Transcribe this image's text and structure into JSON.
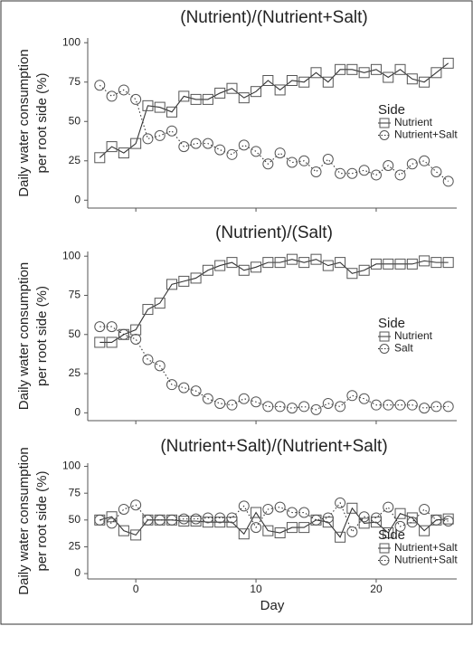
{
  "chart_data": [
    {
      "type": "line",
      "title": "(Nutrient)/(Nutrient+Salt)",
      "ylabel": [
        "Daily water consumption",
        "per root side (%)"
      ],
      "x": [
        -3,
        -2,
        -1,
        0,
        1,
        2,
        3,
        4,
        5,
        6,
        7,
        8,
        9,
        10,
        11,
        12,
        13,
        14,
        15,
        16,
        17,
        18,
        19,
        20,
        21,
        22,
        23,
        24,
        25,
        26
      ],
      "series": [
        {
          "name": "Nutrient",
          "color": "#333333",
          "marker": "square",
          "linestyle": "solid",
          "values": [
            27,
            34,
            30,
            36,
            60,
            59,
            56,
            66,
            64,
            64,
            68,
            71,
            65,
            69,
            76,
            70,
            76,
            75,
            81,
            75,
            83,
            83,
            81,
            83,
            78,
            83,
            77,
            75,
            81,
            87
          ]
        },
        {
          "name": "Nutrient+Salt",
          "color": "#333333",
          "marker": "circle",
          "linestyle": "dotted",
          "values": [
            73,
            66,
            70,
            64,
            39,
            41,
            44,
            34,
            36,
            36,
            32,
            29,
            35,
            31,
            23,
            30,
            24,
            25,
            18,
            26,
            17,
            17,
            19,
            16,
            22,
            16,
            23,
            25,
            18,
            12
          ]
        }
      ],
      "legend_title": "Side",
      "legend": "right",
      "xlim": [
        -4,
        26.7
      ],
      "xticks": [
        0,
        10,
        20
      ],
      "show_xtick_labels": false,
      "ylim": [
        -5,
        103
      ],
      "yticks": [
        0,
        25,
        50,
        75,
        100
      ],
      "grid": false
    },
    {
      "type": "line",
      "title": "(Nutrient)/(Salt)",
      "ylabel": [
        "Daily water consumption",
        "per root side (%)"
      ],
      "x": [
        -3,
        -2,
        -1,
        0,
        1,
        2,
        3,
        4,
        5,
        6,
        7,
        8,
        9,
        10,
        11,
        12,
        13,
        14,
        15,
        16,
        17,
        18,
        19,
        20,
        21,
        22,
        23,
        24,
        25,
        26
      ],
      "series": [
        {
          "name": "Nutrient",
          "color": "#333333",
          "marker": "square",
          "linestyle": "solid",
          "values": [
            45,
            45,
            50,
            53,
            66,
            70,
            82,
            84,
            86,
            91,
            94,
            96,
            91,
            93,
            96,
            96,
            98,
            96,
            98,
            94,
            96,
            89,
            91,
            95,
            95,
            95,
            95,
            97,
            96,
            96
          ]
        },
        {
          "name": "Salt",
          "color": "#333333",
          "marker": "circle",
          "linestyle": "dotted",
          "values": [
            55,
            55,
            50,
            47,
            34,
            30,
            18,
            16,
            14,
            9,
            6,
            5,
            9,
            7,
            4,
            4,
            3,
            4,
            2,
            6,
            4,
            11,
            9,
            5,
            5,
            5,
            5,
            3,
            4,
            4
          ]
        }
      ],
      "legend_title": "Side",
      "legend": "right",
      "xlim": [
        -4,
        26.7
      ],
      "xticks": [
        0,
        10,
        20
      ],
      "show_xtick_labels": false,
      "ylim": [
        -5,
        103
      ],
      "yticks": [
        0,
        25,
        50,
        75,
        100
      ],
      "grid": false
    },
    {
      "type": "line",
      "title": "(Nutrient+Salt)/(Nutrient+Salt)",
      "ylabel": [
        "Daily water consumption",
        "per root side (%)"
      ],
      "xlabel": "Day",
      "x": [
        -3,
        -2,
        -1,
        0,
        1,
        2,
        3,
        4,
        5,
        6,
        7,
        8,
        9,
        10,
        11,
        12,
        13,
        14,
        15,
        16,
        17,
        18,
        19,
        20,
        21,
        22,
        23,
        24,
        25,
        26
      ],
      "series": [
        {
          "name": "Nutrient+Salt",
          "color": "#333333",
          "marker": "square",
          "linestyle": "solid",
          "values": [
            50,
            53,
            40,
            36,
            50,
            50,
            50,
            49,
            49,
            48,
            48,
            48,
            37,
            57,
            40,
            38,
            43,
            43,
            50,
            48,
            34,
            61,
            47,
            48,
            38,
            56,
            52,
            40,
            50,
            51
          ]
        },
        {
          "name": "Nutrient+Salt",
          "color": "#333333",
          "marker": "circle",
          "linestyle": "dotted",
          "values": [
            50,
            47,
            60,
            64,
            50,
            50,
            50,
            51,
            51,
            52,
            52,
            52,
            63,
            43,
            60,
            62,
            57,
            57,
            50,
            52,
            66,
            39,
            53,
            52,
            62,
            44,
            48,
            60,
            50,
            49
          ]
        }
      ],
      "legend_title": "Side",
      "legend": "right",
      "xlim": [
        -4,
        26.7
      ],
      "xticks": [
        0,
        10,
        20
      ],
      "show_xtick_labels": true,
      "ylim": [
        -5,
        103
      ],
      "yticks": [
        0,
        25,
        50,
        75,
        100
      ],
      "grid": false
    }
  ]
}
